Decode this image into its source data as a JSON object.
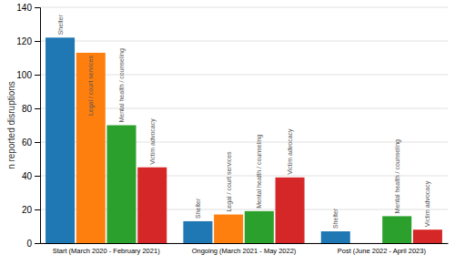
{
  "chart_data": {
    "type": "bar",
    "categories": [
      "Start (March 2020 - February 2021)",
      "Ongoing (March 2021 - May 2022)",
      "Post (June 2022 - April 2023)"
    ],
    "series": [
      {
        "name": "Shelter",
        "values": [
          122,
          13,
          7
        ]
      },
      {
        "name": "Legal / court services",
        "values": [
          113,
          17,
          0
        ]
      },
      {
        "name": "Mental health / counseling",
        "values": [
          70,
          19,
          16
        ]
      },
      {
        "name": "Victim advocacy",
        "values": [
          45,
          39,
          8
        ]
      }
    ],
    "ylabel": "n reported disruptions",
    "ylim": [
      0,
      140
    ],
    "yticks": [
      0,
      20,
      40,
      60,
      80,
      100,
      120,
      140
    ],
    "grid": true
  }
}
